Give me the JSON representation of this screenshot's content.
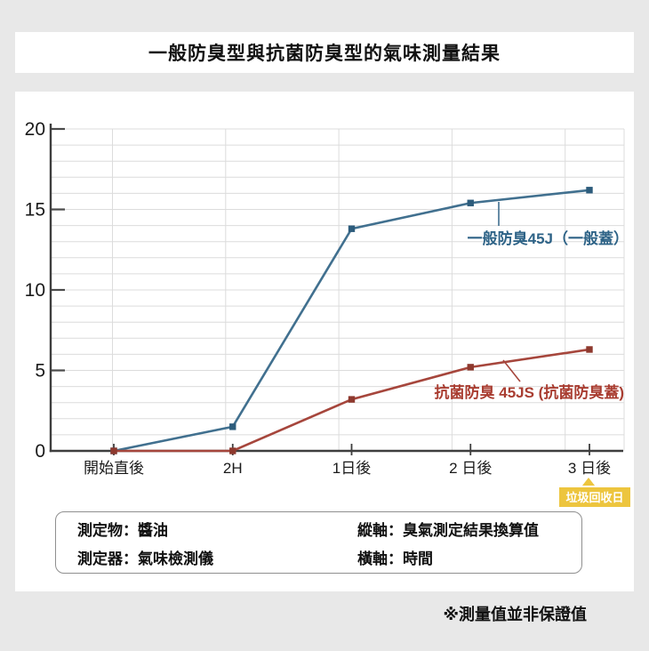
{
  "title": "一般防臭型與抗菌防臭型的氣味測量結果",
  "footnote": "※測量值並非保證值",
  "chart_data": {
    "type": "line",
    "categories": [
      "開始直後",
      "2H",
      "1日後",
      "2 日後",
      "3 日後"
    ],
    "xlabel": "時間",
    "ylabel": "臭氣測定結果換算值",
    "ylim": [
      0,
      20
    ],
    "y_ticks": [
      0,
      5,
      10,
      15,
      20
    ],
    "grid": true,
    "legend_position": "inline-annotations",
    "series": [
      {
        "name": "一般防臭45J（一般蓋）",
        "values": [
          0,
          1.5,
          13.8,
          15.4,
          16.2
        ],
        "color": "#41708f",
        "marker_color": "#2d5c7c",
        "label_color": "#2e6387"
      },
      {
        "name": "抗菌防臭 45JS (抗菌防臭蓋)",
        "values": [
          0,
          0,
          3.2,
          5.2,
          6.3
        ],
        "color": "#a6463c",
        "marker_color": "#8e392e",
        "label_color": "#a93d31"
      }
    ],
    "annotation": {
      "text": "垃圾回收日",
      "category_index": 4,
      "color": "#edc53e"
    }
  },
  "info_box": {
    "items": [
      "測定物：醬油",
      "縱軸：臭氣測定結果換算值",
      "測定器：氣味檢測儀",
      "橫軸：時間"
    ]
  },
  "colors": {
    "background": "#e8e8e8",
    "panel": "#ffffff",
    "axis": "#3e3e3e",
    "grid": "#dcdcdc"
  }
}
